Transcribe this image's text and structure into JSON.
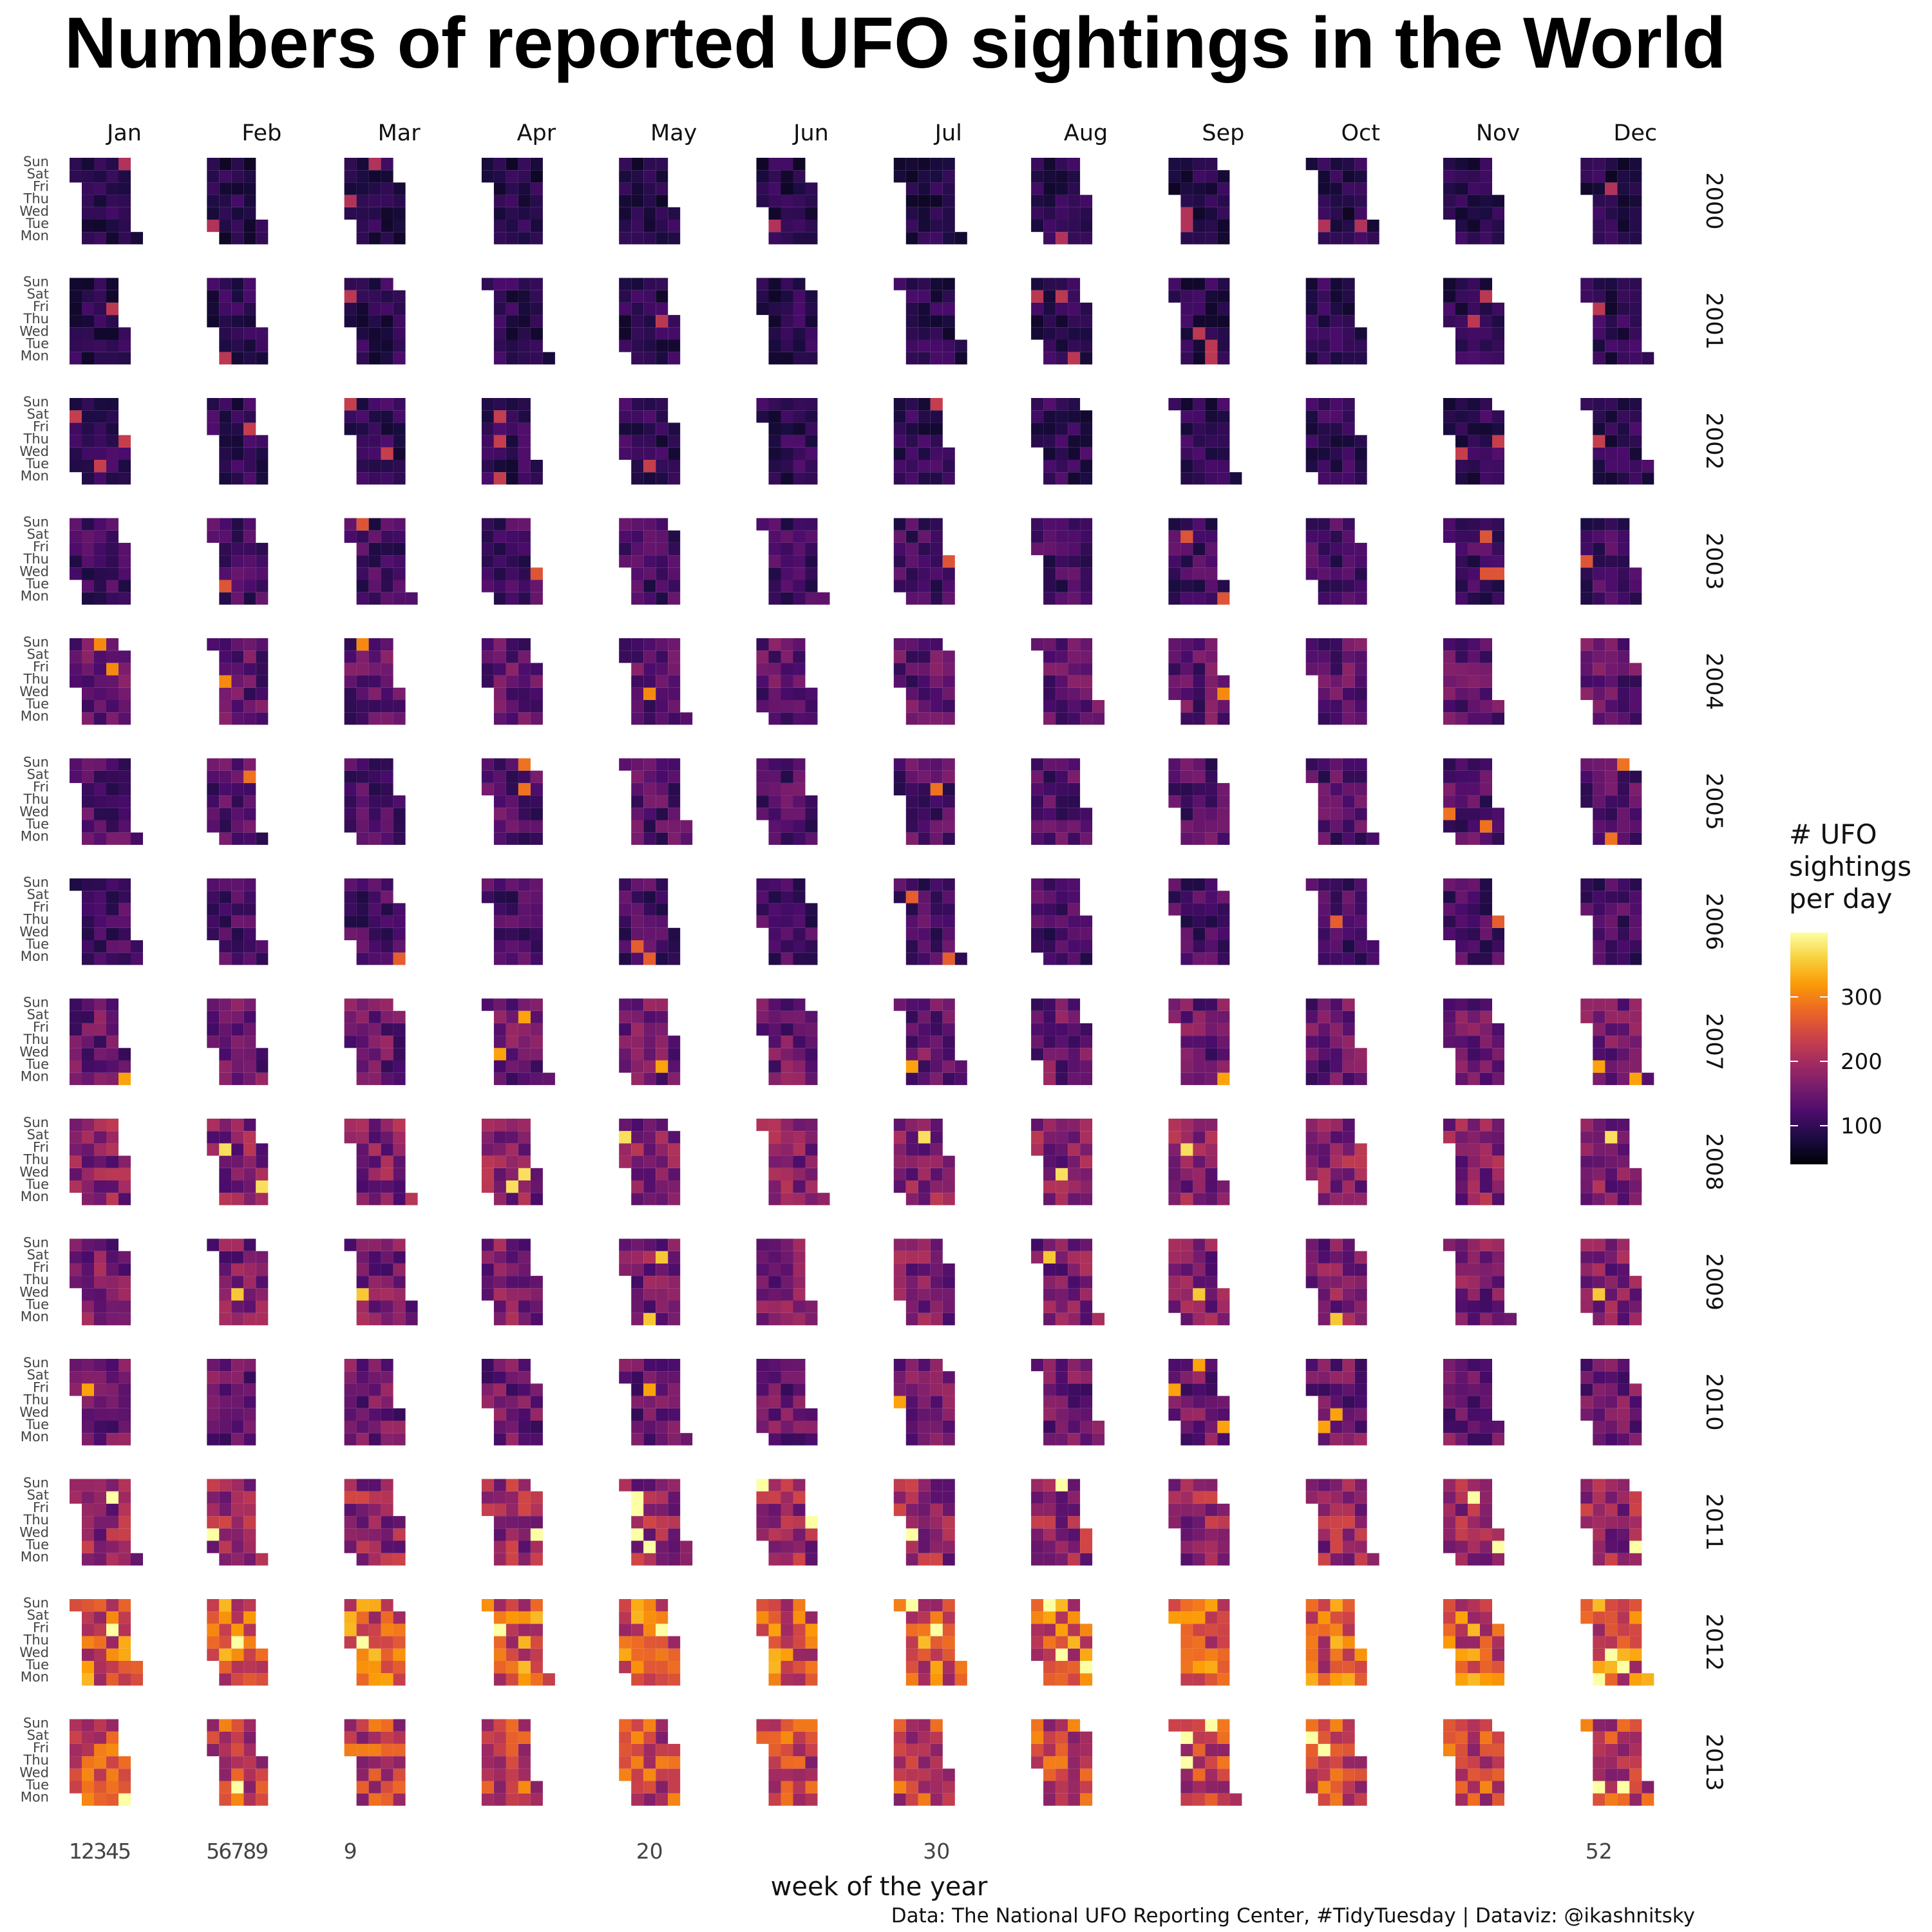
{
  "chart_data": {
    "type": "heatmap",
    "title": "Numbers of reported UFO sightings in the World",
    "xlabel": "week of the year",
    "caption": "Data: The National UFO Reporting Center, #TidyTuesday | Dataviz: @ikashnitsky",
    "months": [
      "Jan",
      "Feb",
      "Mar",
      "Apr",
      "May",
      "Jun",
      "Jul",
      "Aug",
      "Sep",
      "Oct",
      "Nov",
      "Dec"
    ],
    "weekdays": [
      "Sun",
      "Sat",
      "Fri",
      "Thu",
      "Wed",
      "Tue",
      "Mon"
    ],
    "years": [
      "2000",
      "2001",
      "2002",
      "2003",
      "2004",
      "2005",
      "2006",
      "2007",
      "2008",
      "2009",
      "2010",
      "2011",
      "2012",
      "2013"
    ],
    "x_ticks": [
      "1",
      "2",
      "3",
      "4",
      "5",
      "5",
      "6",
      "7",
      "8",
      "9",
      "9",
      "20",
      "30",
      "52"
    ],
    "legend": {
      "title_lines": [
        "# UFO",
        "sightings",
        "per day"
      ],
      "ticks": [
        100,
        200,
        300
      ],
      "range": [
        40,
        400
      ],
      "colors": [
        "#000004",
        "#1b0c41",
        "#4a0c6b",
        "#781c6d",
        "#a52c60",
        "#cf4446",
        "#ed6925",
        "#fb9b06",
        "#f7d13d",
        "#fcffa4"
      ]
    },
    "typical_daily_sightings_by_year": {
      "2000": 90,
      "2001": 95,
      "2002": 100,
      "2003": 115,
      "2004": 140,
      "2005": 130,
      "2006": 120,
      "2007": 150,
      "2008": 175,
      "2009": 165,
      "2010": 150,
      "2011": 190,
      "2012": 270,
      "2013": 240
    }
  }
}
